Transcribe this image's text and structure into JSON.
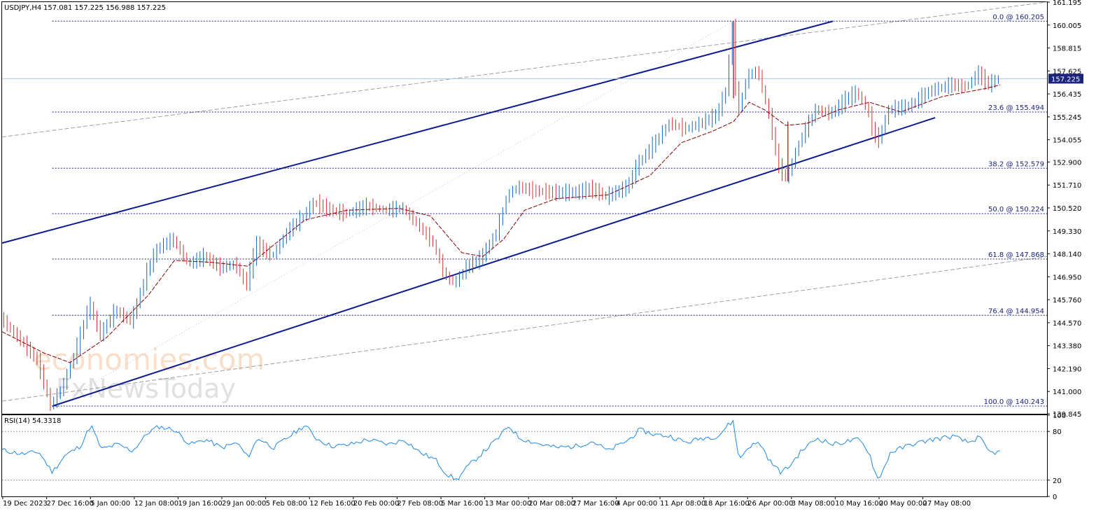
{
  "header": {
    "symbol": "USDJPY,H4",
    "ohlc": "157.081 157.225 156.988 157.225"
  },
  "rsi_header": "RSI(14) 54.3318",
  "watermark": {
    "line1": "economies.com",
    "line2": "FxNewsToday"
  },
  "colors": {
    "bull": "#1565c0",
    "bear": "#d32f2f",
    "ma": "#8b0000",
    "channel": "#0d1b8c",
    "fib": "#1a237e",
    "rsi": "#1e88e5",
    "price_marker": "#1a237e",
    "envelope": "#9e9e9e"
  },
  "chart_data": [
    {
      "type": "candlestick",
      "title": "",
      "price_scale": {
        "ylim": [
          139.845,
          161.195
        ],
        "ticks": [
          "161.195",
          "160.005",
          "158.815",
          "157.625",
          "156.435",
          "155.245",
          "154.055",
          "152.900",
          "151.710",
          "150.520",
          "149.330",
          "148.140",
          "146.950",
          "145.760",
          "144.570",
          "143.380",
          "142.190",
          "141.000",
          "139.845"
        ],
        "current_price": "157.225"
      },
      "time_axis": {
        "labels": [
          "19 Dec 2023",
          "27 Dec 16:00",
          "5 Jan 00:00",
          "12 Jan 08:00",
          "19 Jan 16:00",
          "29 Jan 00:00",
          "5 Feb 08:00",
          "12 Feb 16:00",
          "20 Feb 00:00",
          "27 Feb 08:00",
          "5 Mar 16:00",
          "13 Mar 00:00",
          "20 Mar 08:00",
          "27 Mar 16:00",
          "4 Apr 00:00",
          "11 Apr 08:00",
          "18 Apr 16:00",
          "26 Apr 00:00",
          "3 May 08:00",
          "10 May 16:00",
          "20 May 00:00",
          "27 May 08:00"
        ]
      },
      "price_path": [
        [
          0,
          144.8
        ],
        [
          0.02,
          143.6
        ],
        [
          0.035,
          142.6
        ],
        [
          0.048,
          140.24
        ],
        [
          0.06,
          141.3
        ],
        [
          0.075,
          143.6
        ],
        [
          0.085,
          145.6
        ],
        [
          0.095,
          143.9
        ],
        [
          0.11,
          145.2
        ],
        [
          0.125,
          144.6
        ],
        [
          0.14,
          147.2
        ],
        [
          0.15,
          148.4
        ],
        [
          0.165,
          148.9
        ],
        [
          0.18,
          147.6
        ],
        [
          0.195,
          148.0
        ],
        [
          0.21,
          147.4
        ],
        [
          0.225,
          147.6
        ],
        [
          0.235,
          146.5
        ],
        [
          0.245,
          148.6
        ],
        [
          0.26,
          148.0
        ],
        [
          0.275,
          149.3
        ],
        [
          0.29,
          150.1
        ],
        [
          0.3,
          150.8
        ],
        [
          0.315,
          150.4
        ],
        [
          0.33,
          150.2
        ],
        [
          0.35,
          150.6
        ],
        [
          0.37,
          150.4
        ],
        [
          0.385,
          150.5
        ],
        [
          0.4,
          149.6
        ],
        [
          0.415,
          148.6
        ],
        [
          0.425,
          147.0
        ],
        [
          0.435,
          146.6
        ],
        [
          0.445,
          147.4
        ],
        [
          0.46,
          147.9
        ],
        [
          0.475,
          149.3
        ],
        [
          0.485,
          151.2
        ],
        [
          0.495,
          151.6
        ],
        [
          0.51,
          151.4
        ],
        [
          0.53,
          151.3
        ],
        [
          0.55,
          151.3
        ],
        [
          0.565,
          151.5
        ],
        [
          0.58,
          151.1
        ],
        [
          0.6,
          151.6
        ],
        [
          0.61,
          152.8
        ],
        [
          0.625,
          153.8
        ],
        [
          0.64,
          154.9
        ],
        [
          0.655,
          154.6
        ],
        [
          0.67,
          154.9
        ],
        [
          0.685,
          155.3
        ],
        [
          0.695,
          156.7
        ],
        [
          0.7,
          160.2
        ],
        [
          0.705,
          155.3
        ],
        [
          0.715,
          157.4
        ],
        [
          0.725,
          157.6
        ],
        [
          0.735,
          155.4
        ],
        [
          0.745,
          152.6
        ],
        [
          0.752,
          152.0
        ],
        [
          0.765,
          154.0
        ],
        [
          0.78,
          155.6
        ],
        [
          0.795,
          155.4
        ],
        [
          0.81,
          156.2
        ],
        [
          0.82,
          156.5
        ],
        [
          0.83,
          155.6
        ],
        [
          0.835,
          154.4
        ],
        [
          0.84,
          154.0
        ],
        [
          0.85,
          155.6
        ],
        [
          0.87,
          155.8
        ],
        [
          0.89,
          156.6
        ],
        [
          0.91,
          156.9
        ],
        [
          0.925,
          156.8
        ],
        [
          0.935,
          157.5
        ],
        [
          0.945,
          156.9
        ],
        [
          0.955,
          157.225
        ]
      ],
      "moving_average_path": [
        [
          0,
          144.1
        ],
        [
          0.04,
          143.0
        ],
        [
          0.065,
          142.5
        ],
        [
          0.1,
          143.8
        ],
        [
          0.14,
          146.0
        ],
        [
          0.165,
          147.8
        ],
        [
          0.2,
          147.7
        ],
        [
          0.235,
          147.5
        ],
        [
          0.26,
          148.6
        ],
        [
          0.29,
          149.9
        ],
        [
          0.33,
          150.4
        ],
        [
          0.38,
          150.5
        ],
        [
          0.41,
          150.1
        ],
        [
          0.44,
          148.2
        ],
        [
          0.46,
          148.0
        ],
        [
          0.48,
          148.9
        ],
        [
          0.5,
          150.4
        ],
        [
          0.53,
          151.0
        ],
        [
          0.58,
          151.2
        ],
        [
          0.62,
          152.2
        ],
        [
          0.65,
          153.9
        ],
        [
          0.68,
          154.5
        ],
        [
          0.7,
          155.0
        ],
        [
          0.715,
          156.0
        ],
        [
          0.73,
          155.6
        ],
        [
          0.75,
          154.8
        ],
        [
          0.77,
          154.9
        ],
        [
          0.8,
          155.6
        ],
        [
          0.83,
          156.0
        ],
        [
          0.86,
          155.5
        ],
        [
          0.9,
          156.3
        ],
        [
          0.94,
          156.7
        ],
        [
          0.955,
          156.9
        ]
      ],
      "fibonacci_levels": [
        {
          "label": "0.0 @ 160.205",
          "price": 160.205
        },
        {
          "label": "23.6 @ 155.494",
          "price": 155.494
        },
        {
          "label": "38.2 @ 152.579",
          "price": 152.579
        },
        {
          "label": "50.0 @ 150.224",
          "price": 150.224
        },
        {
          "label": "61.8 @ 147.868",
          "price": 147.868
        },
        {
          "label": "76.4 @ 144.954",
          "price": 144.954
        },
        {
          "label": "100.0 @ 140.243",
          "price": 140.243
        }
      ],
      "channel_lines": [
        {
          "name": "upper",
          "from": [
            0,
            148.7
          ],
          "to": [
            0.795,
            160.2
          ]
        },
        {
          "name": "lower",
          "from": [
            0.048,
            140.24
          ],
          "to": [
            0.893,
            155.2
          ]
        }
      ],
      "envelope_lines": [
        {
          "name": "outer-upper",
          "from": [
            0,
            154.2
          ],
          "to": [
            1,
            161.2
          ]
        },
        {
          "name": "outer-lower",
          "from": [
            0,
            140.5
          ],
          "to": [
            1,
            148.0
          ]
        }
      ]
    },
    {
      "type": "line",
      "title": "",
      "name": "RSI(14)",
      "ylim": [
        0,
        100
      ],
      "ticks": [
        "100",
        "80",
        "20",
        "0"
      ],
      "levels": [
        80,
        20
      ],
      "series_path": [
        [
          0,
          57
        ],
        [
          0.02,
          52
        ],
        [
          0.035,
          55
        ],
        [
          0.048,
          30
        ],
        [
          0.06,
          50
        ],
        [
          0.075,
          62
        ],
        [
          0.085,
          88
        ],
        [
          0.095,
          58
        ],
        [
          0.11,
          64
        ],
        [
          0.125,
          56
        ],
        [
          0.14,
          79
        ],
        [
          0.15,
          86
        ],
        [
          0.165,
          82
        ],
        [
          0.18,
          64
        ],
        [
          0.195,
          70
        ],
        [
          0.21,
          60
        ],
        [
          0.225,
          66
        ],
        [
          0.235,
          48
        ],
        [
          0.245,
          72
        ],
        [
          0.26,
          60
        ],
        [
          0.275,
          74
        ],
        [
          0.29,
          88
        ],
        [
          0.3,
          72
        ],
        [
          0.315,
          62
        ],
        [
          0.33,
          63
        ],
        [
          0.35,
          70
        ],
        [
          0.37,
          64
        ],
        [
          0.385,
          70
        ],
        [
          0.4,
          54
        ],
        [
          0.415,
          45
        ],
        [
          0.425,
          28
        ],
        [
          0.435,
          20
        ],
        [
          0.445,
          36
        ],
        [
          0.46,
          54
        ],
        [
          0.475,
          72
        ],
        [
          0.485,
          87
        ],
        [
          0.495,
          72
        ],
        [
          0.51,
          66
        ],
        [
          0.53,
          60
        ],
        [
          0.55,
          62
        ],
        [
          0.565,
          68
        ],
        [
          0.58,
          56
        ],
        [
          0.6,
          70
        ],
        [
          0.61,
          82
        ],
        [
          0.625,
          76
        ],
        [
          0.64,
          74
        ],
        [
          0.655,
          66
        ],
        [
          0.67,
          72
        ],
        [
          0.685,
          74
        ],
        [
          0.695,
          88
        ],
        [
          0.7,
          93
        ],
        [
          0.705,
          45
        ],
        [
          0.715,
          62
        ],
        [
          0.725,
          66
        ],
        [
          0.735,
          43
        ],
        [
          0.745,
          30
        ],
        [
          0.752,
          35
        ],
        [
          0.765,
          56
        ],
        [
          0.78,
          72
        ],
        [
          0.795,
          64
        ],
        [
          0.81,
          68
        ],
        [
          0.82,
          70
        ],
        [
          0.83,
          54
        ],
        [
          0.835,
          30
        ],
        [
          0.84,
          22
        ],
        [
          0.85,
          54
        ],
        [
          0.87,
          64
        ],
        [
          0.89,
          70
        ],
        [
          0.91,
          74
        ],
        [
          0.925,
          66
        ],
        [
          0.935,
          73
        ],
        [
          0.945,
          54
        ],
        [
          0.955,
          54.33
        ]
      ]
    }
  ]
}
